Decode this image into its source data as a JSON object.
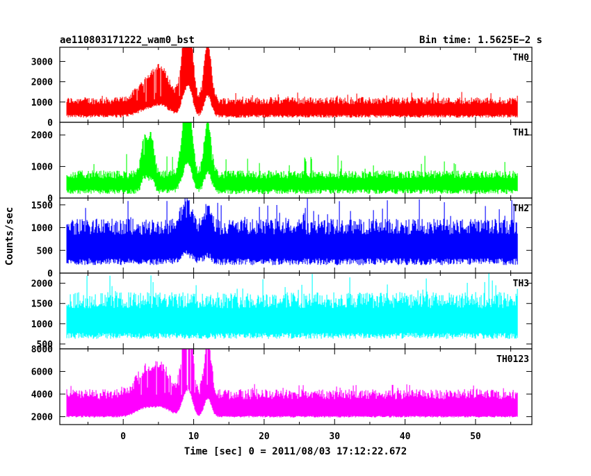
{
  "header": {
    "left_title": "ae110803171222_wam0_bst",
    "right_title": "Bin time: 1.5625E−2 s"
  },
  "chart_data": {
    "type": "line",
    "xlabel": "Time [sec] 0 = 2011/08/03 17:12:22.672",
    "ylabel": "Counts/sec",
    "xlim": [
      -9,
      58
    ],
    "x_ticks": [
      0,
      10,
      20,
      30,
      40,
      50
    ],
    "x_tick_labels": [
      "0",
      "10",
      "20",
      "30",
      "40",
      "50"
    ],
    "x_start": -8,
    "x_end": 56,
    "panels": [
      {
        "name": "TH0",
        "color": "#ff0000",
        "ylim": [
          0,
          3700
        ],
        "y_ticks": [
          0,
          1000,
          2000,
          3000
        ],
        "y_tick_labels": [
          "0",
          "1000",
          "2000",
          "3000"
        ],
        "baseline_low": 300,
        "baseline_high": 1000,
        "spike_max": 1500,
        "features": [
          {
            "t": 3.5,
            "width": 1.5,
            "amp": 900
          },
          {
            "t": 5.5,
            "width": 1.2,
            "amp": 1200
          },
          {
            "t": 8.8,
            "width": 0.6,
            "amp": 2800
          },
          {
            "t": 9.5,
            "width": 0.5,
            "amp": 2400
          },
          {
            "t": 12.0,
            "width": 0.5,
            "amp": 2900
          }
        ]
      },
      {
        "name": "TH1",
        "color": "#00ff00",
        "ylim": [
          0,
          2400
        ],
        "y_ticks": [
          0,
          1000,
          2000
        ],
        "y_tick_labels": [
          "0",
          "1000",
          "2000"
        ],
        "baseline_low": 200,
        "baseline_high": 700,
        "spike_max": 1400,
        "features": [
          {
            "t": 3.0,
            "width": 0.4,
            "amp": 1300
          },
          {
            "t": 4.0,
            "width": 0.4,
            "amp": 1200
          },
          {
            "t": 8.8,
            "width": 0.6,
            "amp": 1600
          },
          {
            "t": 9.4,
            "width": 0.5,
            "amp": 1400
          },
          {
            "t": 12.0,
            "width": 0.5,
            "amp": 1700
          }
        ]
      },
      {
        "name": "TH2",
        "color": "#0000ff",
        "ylim": [
          0,
          1650
        ],
        "y_ticks": [
          0,
          500,
          1000,
          1500
        ],
        "y_tick_labels": [
          "0",
          "500",
          "1000",
          "1500"
        ],
        "baseline_low": 250,
        "baseline_high": 950,
        "spike_max": 1650,
        "features": [
          {
            "t": 9.0,
            "width": 0.8,
            "amp": 500
          },
          {
            "t": 12.0,
            "width": 0.5,
            "amp": 400
          }
        ]
      },
      {
        "name": "TH3",
        "color": "#00ffff",
        "ylim": [
          380,
          2250
        ],
        "y_ticks": [
          500,
          1000,
          1500,
          2000
        ],
        "y_tick_labels": [
          "500",
          "1000",
          "1500",
          "2000"
        ],
        "baseline_low": 700,
        "baseline_high": 1500,
        "spike_max": 2250,
        "features": []
      },
      {
        "name": "TH0123",
        "color": "#ff00ff",
        "ylim": [
          1300,
          8000
        ],
        "y_ticks": [
          2000,
          4000,
          6000,
          8000
        ],
        "y_tick_labels": [
          "2000",
          "4000",
          "6000",
          "8000"
        ],
        "baseline_low": 2000,
        "baseline_high": 3800,
        "spike_max": 4900,
        "features": [
          {
            "t": 3.0,
            "width": 1.2,
            "amp": 2000
          },
          {
            "t": 5.5,
            "width": 1.2,
            "amp": 2200
          },
          {
            "t": 8.8,
            "width": 0.6,
            "amp": 4500
          },
          {
            "t": 9.5,
            "width": 0.5,
            "amp": 3800
          },
          {
            "t": 12.0,
            "width": 0.5,
            "amp": 4600
          }
        ]
      }
    ],
    "grid": false,
    "legend": "panel labels top-right"
  }
}
